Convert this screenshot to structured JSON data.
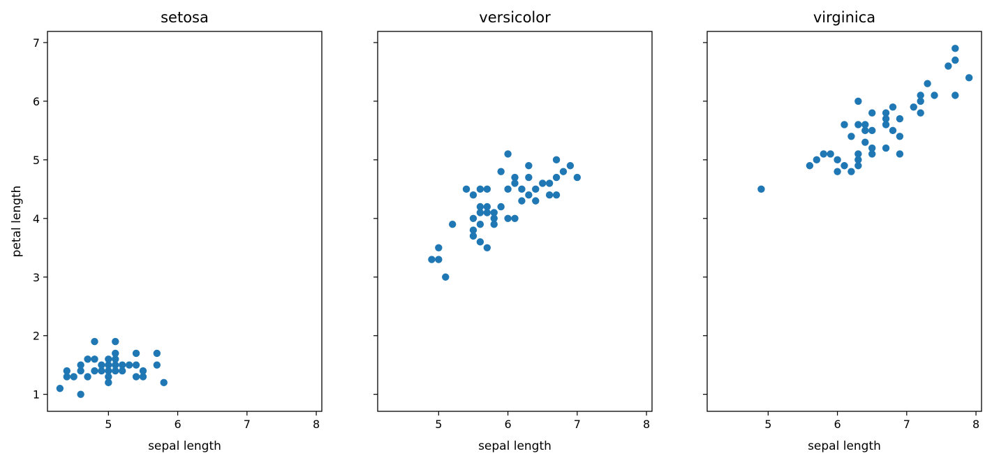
{
  "chart_data": {
    "type": "scatter",
    "xlabel": "sepal length",
    "ylabel": "petal length",
    "xlim": [
      4.12,
      8.08
    ],
    "ylim": [
      0.71,
      7.19
    ],
    "xticks": [
      5,
      6,
      7,
      8
    ],
    "yticks": [
      1,
      2,
      3,
      4,
      5,
      6,
      7
    ],
    "sharey": true,
    "grid": false,
    "point_color": "#1f77b4",
    "panels": [
      {
        "title": "setosa",
        "points": [
          [
            4.3,
            1.1
          ],
          [
            4.4,
            1.4
          ],
          [
            4.4,
            1.3
          ],
          [
            4.5,
            1.3
          ],
          [
            4.6,
            1.0
          ],
          [
            4.6,
            1.4
          ],
          [
            4.6,
            1.5
          ],
          [
            4.7,
            1.3
          ],
          [
            4.7,
            1.6
          ],
          [
            4.8,
            1.4
          ],
          [
            4.8,
            1.6
          ],
          [
            4.8,
            1.9
          ],
          [
            4.9,
            1.4
          ],
          [
            4.9,
            1.5
          ],
          [
            5.0,
            1.2
          ],
          [
            5.0,
            1.3
          ],
          [
            5.0,
            1.4
          ],
          [
            5.0,
            1.5
          ],
          [
            5.0,
            1.6
          ],
          [
            5.1,
            1.4
          ],
          [
            5.1,
            1.5
          ],
          [
            5.1,
            1.6
          ],
          [
            5.1,
            1.7
          ],
          [
            5.1,
            1.9
          ],
          [
            5.2,
            1.4
          ],
          [
            5.2,
            1.5
          ],
          [
            5.3,
            1.5
          ],
          [
            5.4,
            1.3
          ],
          [
            5.4,
            1.5
          ],
          [
            5.4,
            1.7
          ],
          [
            5.5,
            1.3
          ],
          [
            5.5,
            1.4
          ],
          [
            5.7,
            1.5
          ],
          [
            5.7,
            1.7
          ],
          [
            5.8,
            1.2
          ]
        ]
      },
      {
        "title": "versicolor",
        "points": [
          [
            4.9,
            3.3
          ],
          [
            5.0,
            3.3
          ],
          [
            5.0,
            3.5
          ],
          [
            5.1,
            3.0
          ],
          [
            5.2,
            3.9
          ],
          [
            5.4,
            4.5
          ],
          [
            5.5,
            3.7
          ],
          [
            5.5,
            3.8
          ],
          [
            5.5,
            4.0
          ],
          [
            5.5,
            4.4
          ],
          [
            5.6,
            3.6
          ],
          [
            5.6,
            3.9
          ],
          [
            5.6,
            4.1
          ],
          [
            5.6,
            4.2
          ],
          [
            5.6,
            4.5
          ],
          [
            5.7,
            3.5
          ],
          [
            5.7,
            4.1
          ],
          [
            5.7,
            4.2
          ],
          [
            5.7,
            4.5
          ],
          [
            5.8,
            3.9
          ],
          [
            5.8,
            4.0
          ],
          [
            5.8,
            4.1
          ],
          [
            5.9,
            4.2
          ],
          [
            5.9,
            4.8
          ],
          [
            6.0,
            4.0
          ],
          [
            6.0,
            4.5
          ],
          [
            6.0,
            5.1
          ],
          [
            6.1,
            4.0
          ],
          [
            6.1,
            4.6
          ],
          [
            6.1,
            4.7
          ],
          [
            6.2,
            4.3
          ],
          [
            6.2,
            4.5
          ],
          [
            6.3,
            4.4
          ],
          [
            6.3,
            4.7
          ],
          [
            6.3,
            4.9
          ],
          [
            6.4,
            4.3
          ],
          [
            6.4,
            4.5
          ],
          [
            6.5,
            4.6
          ],
          [
            6.6,
            4.4
          ],
          [
            6.6,
            4.6
          ],
          [
            6.7,
            4.4
          ],
          [
            6.7,
            4.7
          ],
          [
            6.7,
            5.0
          ],
          [
            6.8,
            4.8
          ],
          [
            6.9,
            4.9
          ],
          [
            7.0,
            4.7
          ]
        ]
      },
      {
        "title": "virginica",
        "points": [
          [
            4.9,
            4.5
          ],
          [
            5.6,
            4.9
          ],
          [
            5.7,
            5.0
          ],
          [
            5.8,
            5.1
          ],
          [
            5.9,
            5.1
          ],
          [
            6.0,
            4.8
          ],
          [
            6.0,
            5.0
          ],
          [
            6.1,
            4.9
          ],
          [
            6.1,
            5.6
          ],
          [
            6.2,
            4.8
          ],
          [
            6.2,
            5.4
          ],
          [
            6.3,
            4.9
          ],
          [
            6.3,
            5.0
          ],
          [
            6.3,
            5.1
          ],
          [
            6.3,
            5.6
          ],
          [
            6.3,
            6.0
          ],
          [
            6.4,
            5.3
          ],
          [
            6.4,
            5.5
          ],
          [
            6.4,
            5.6
          ],
          [
            6.5,
            5.1
          ],
          [
            6.5,
            5.2
          ],
          [
            6.5,
            5.5
          ],
          [
            6.5,
            5.8
          ],
          [
            6.7,
            5.2
          ],
          [
            6.7,
            5.6
          ],
          [
            6.7,
            5.7
          ],
          [
            6.7,
            5.8
          ],
          [
            6.8,
            5.5
          ],
          [
            6.8,
            5.9
          ],
          [
            6.9,
            5.1
          ],
          [
            6.9,
            5.4
          ],
          [
            6.9,
            5.7
          ],
          [
            7.1,
            5.9
          ],
          [
            7.2,
            5.8
          ],
          [
            7.2,
            6.0
          ],
          [
            7.2,
            6.1
          ],
          [
            7.3,
            6.3
          ],
          [
            7.4,
            6.1
          ],
          [
            7.6,
            6.6
          ],
          [
            7.7,
            6.1
          ],
          [
            7.7,
            6.7
          ],
          [
            7.7,
            6.9
          ],
          [
            7.9,
            6.4
          ]
        ]
      }
    ]
  }
}
